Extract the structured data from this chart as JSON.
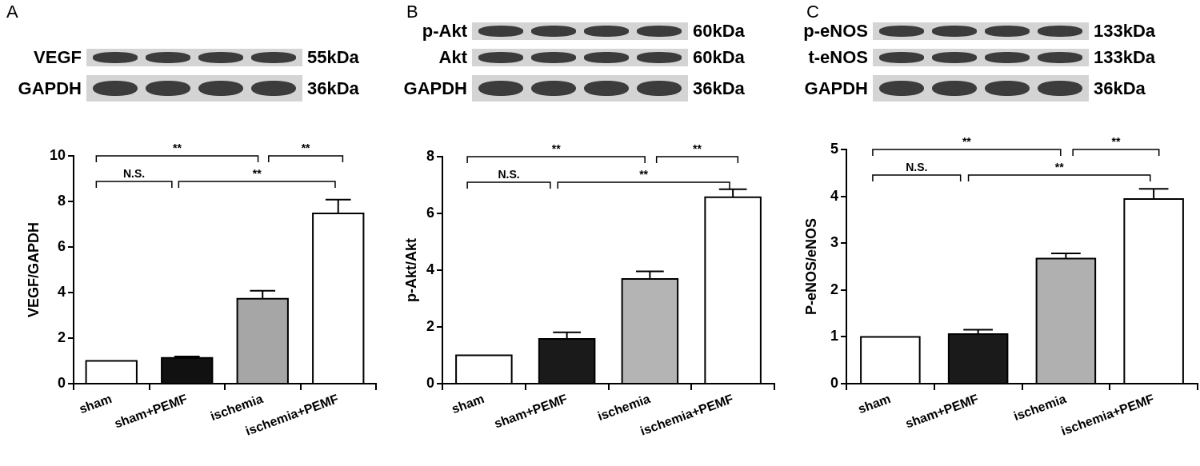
{
  "chart_data": [
    {
      "type": "bar",
      "title": "A",
      "categories": [
        "sham",
        "sham+PEMF",
        "ischemia",
        "ischemia+PEMF"
      ],
      "values": [
        1.0,
        1.13,
        3.73,
        7.47
      ],
      "colors": [
        "#ffffff",
        "#111111",
        "#a6a6a6",
        "#ffffff"
      ],
      "errors": [
        null,
        [
          1.13,
          1.19
        ],
        [
          3.73,
          4.08
        ],
        [
          7.47,
          8.08
        ]
      ],
      "ylabel": "VEGF/GAPDH",
      "ylim": [
        0,
        10
      ],
      "yticks": [
        0,
        2,
        4,
        6,
        8,
        10
      ],
      "annotations": [
        "VEGF",
        "55kDa",
        "GAPDH",
        "36kDa",
        "**",
        "**",
        "N.S.",
        "**"
      ]
    },
    {
      "type": "bar",
      "title": "B",
      "categories": [
        "sham",
        "sham+PEMF",
        "ischemia",
        "ischemia+PEMF"
      ],
      "values": [
        1.0,
        1.58,
        3.69,
        6.57
      ],
      "colors": [
        "#ffffff",
        "#1a1a1a",
        "#b4b4b4",
        "#ffffff"
      ],
      "errors": [
        null,
        [
          1.58,
          1.81
        ],
        [
          3.69,
          3.96
        ],
        [
          6.57,
          6.85
        ]
      ],
      "ylabel": "p-Akt/Akt",
      "ylim": [
        0,
        8
      ],
      "yticks": [
        0,
        2,
        4,
        6,
        8
      ],
      "annotations": [
        "p-Akt",
        "60kDa",
        "Akt",
        "60kDa",
        "GAPDH",
        "36kDa",
        "**",
        "**",
        "N.S.",
        "**"
      ]
    },
    {
      "type": "bar",
      "title": "C",
      "categories": [
        "sham",
        "sham+PEMF",
        "ischemia",
        "ischemia+PEMF"
      ],
      "values": [
        1.0,
        1.06,
        2.67,
        3.94
      ],
      "colors": [
        "#ffffff",
        "#1a1a1a",
        "#b0b0b0",
        "#ffffff"
      ],
      "errors": [
        null,
        [
          1.06,
          1.15
        ],
        [
          2.67,
          2.78
        ],
        [
          3.94,
          4.16
        ]
      ],
      "ylabel": "P-eNOS/eNOS",
      "ylim": [
        0,
        5
      ],
      "yticks": [
        0,
        1,
        2,
        3,
        4,
        5
      ],
      "annotations": [
        "p-eNOS",
        "133kDa",
        "t-eNOS",
        "133kDa",
        "GAPDH",
        "36kDa",
        "**",
        "**",
        "N.S.",
        "**"
      ]
    }
  ]
}
